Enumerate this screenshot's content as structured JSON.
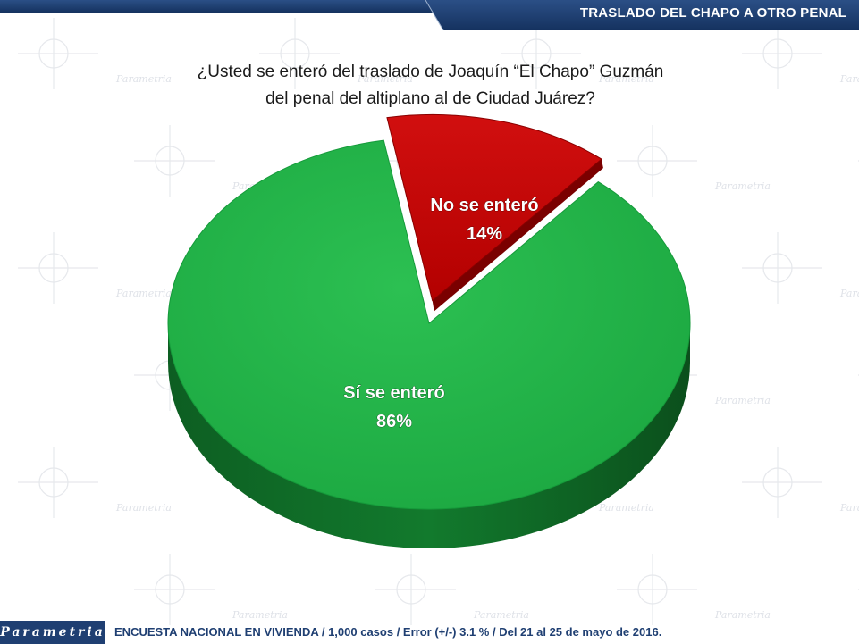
{
  "header": {
    "title": "TRASLADO DEL CHAPO A OTRO PENAL"
  },
  "question": {
    "line1": "¿Usted se enteró del traslado de Joaquín “El Chapo” Guzmán",
    "line2": "del penal del altiplano al de Ciudad Juárez?"
  },
  "chart_data": {
    "type": "pie",
    "title": "",
    "slices": [
      {
        "label": "No se enteró",
        "value": 14,
        "value_label": "14%",
        "color": "#c00000",
        "exploded": true
      },
      {
        "label": "Sí se enteró",
        "value": 86,
        "value_label": "86%",
        "color": "#22b14c",
        "exploded": false
      }
    ],
    "legend": "none",
    "style": "3d"
  },
  "watermark": {
    "brand": "Parametria"
  },
  "footer": {
    "logo": "Parametria",
    "note": "ENCUESTA NACIONAL EN VIVIENDA / 1,000 casos / Error (+/-) 3.1 % / Del 21 al 25 de mayo de 2016."
  },
  "colors": {
    "brand_blue": "#1f3f72",
    "header_blue": "#1b3d73"
  }
}
